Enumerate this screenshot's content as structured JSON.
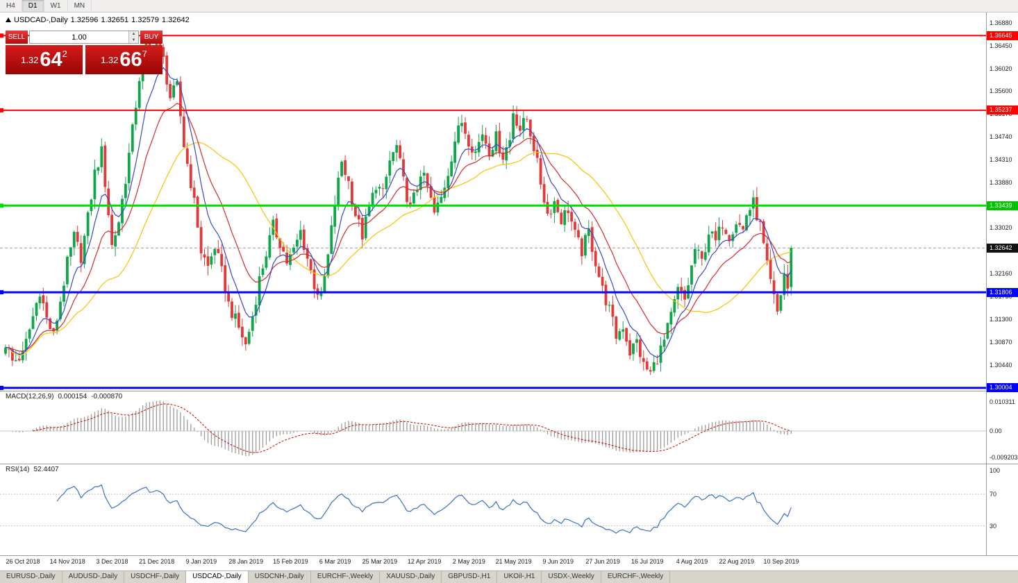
{
  "toolbar": {
    "periods": [
      {
        "label": "H4",
        "active": false
      },
      {
        "label": "D1",
        "active": true
      },
      {
        "label": "W1",
        "active": false
      },
      {
        "label": "MN",
        "active": false
      }
    ]
  },
  "main_chart": {
    "symbol": "USDCAD-,Daily",
    "open": "1.32596",
    "high": "1.32651",
    "low": "1.32579",
    "close": "1.32642"
  },
  "trade_panel": {
    "sell_label": "SELL",
    "buy_label": "BUY",
    "volume": "1.00",
    "sell_price_head": "1.32",
    "sell_price_big": "64",
    "sell_price_sup": "2",
    "buy_price_head": "1.32",
    "buy_price_big": "66",
    "buy_price_sup": "7"
  },
  "icons": {
    "spinner_up": "▲",
    "spinner_down": "▼"
  },
  "price_axis": {
    "ticks": [
      "1.36880",
      "1.36450",
      "1.36020",
      "1.35600",
      "1.35170",
      "1.34740",
      "1.34310",
      "1.33880",
      "1.33450",
      "1.33020",
      "1.32590",
      "1.32160",
      "1.31730",
      "1.31300",
      "1.30870",
      "1.30440"
    ],
    "badges": [
      {
        "text": "1.36645",
        "bg": "#ff0000"
      },
      {
        "text": "1.35237",
        "bg": "#ff0000"
      },
      {
        "text": "1.33439",
        "bg": "#00c400"
      },
      {
        "text": "1.32642",
        "bg": "#111111"
      },
      {
        "text": "1.31806",
        "bg": "#0000ff"
      },
      {
        "text": "1.30004",
        "bg": "#0000ff"
      }
    ]
  },
  "macd_panel": {
    "label": "MACD(12,26,9)",
    "value1": "0.000154",
    "value2": "-0.000870",
    "axis": [
      "0.010311",
      "0.00",
      "-0.009203"
    ]
  },
  "rsi_panel": {
    "label": "RSI(14)",
    "value": "52.4407",
    "axis": [
      "100",
      "70",
      "30"
    ]
  },
  "date_axis": [
    "26 Oct 2018",
    "14 Nov 2018",
    "3 Dec 2018",
    "21 Dec 2018",
    "9 Jan 2019",
    "28 Jan 2019",
    "15 Feb 2019",
    "6 Mar 2019",
    "25 Mar 2019",
    "12 Apr 2019",
    "2 May 2019",
    "21 May 2019",
    "9 Jun 2019",
    "27 Jun 2019",
    "16 Jul 2019",
    "4 Aug 2019",
    "22 Aug 2019",
    "10 Sep 2019"
  ],
  "tabs": [
    {
      "label": "EURUSD-,Daily",
      "active": false
    },
    {
      "label": "AUDUSD-,Daily",
      "active": false
    },
    {
      "label": "USDCHF-,Daily",
      "active": false
    },
    {
      "label": "USDCAD-,Daily",
      "active": true
    },
    {
      "label": "USDCNH-,Daily",
      "active": false
    },
    {
      "label": "EURCHF-,Weekly",
      "active": false
    },
    {
      "label": "XAUUSD-,Daily",
      "active": false
    },
    {
      "label": "GBPUSD-,H1",
      "active": false
    },
    {
      "label": "UKOil-,H1",
      "active": false
    },
    {
      "label": "USDX-,Weekly",
      "active": false
    },
    {
      "label": "EURCHF-,Weekly",
      "active": false
    }
  ],
  "chart_data": {
    "type": "candlestick",
    "symbol": "USDCAD",
    "timeframe": "Daily",
    "bars": 230,
    "last_close": 1.32642,
    "price_axis_top": 1.3708,
    "price_axis_bottom": 1.2995,
    "noise_amplitude": 0.0013,
    "up_color": "#0fa64a",
    "down_color": "#e23939",
    "close_waypoints": [
      [
        0,
        1.3085
      ],
      [
        2,
        1.305
      ],
      [
        5,
        1.3062
      ],
      [
        8,
        1.3135
      ],
      [
        10,
        1.3185
      ],
      [
        12,
        1.313
      ],
      [
        14,
        1.3098
      ],
      [
        16,
        1.3165
      ],
      [
        18,
        1.3235
      ],
      [
        20,
        1.3285
      ],
      [
        22,
        1.3248
      ],
      [
        24,
        1.332
      ],
      [
        26,
        1.3405
      ],
      [
        28,
        1.3445
      ],
      [
        30,
        1.333
      ],
      [
        31,
        1.3268
      ],
      [
        33,
        1.3315
      ],
      [
        35,
        1.3395
      ],
      [
        37,
        1.3485
      ],
      [
        39,
        1.3585
      ],
      [
        41,
        1.3645
      ],
      [
        42,
        1.3608
      ],
      [
        44,
        1.3655
      ],
      [
        46,
        1.3618
      ],
      [
        48,
        1.3548
      ],
      [
        50,
        1.3568
      ],
      [
        52,
        1.3458
      ],
      [
        54,
        1.3388
      ],
      [
        56,
        1.3308
      ],
      [
        57,
        1.3258
      ],
      [
        59,
        1.3228
      ],
      [
        61,
        1.3268
      ],
      [
        63,
        1.3218
      ],
      [
        65,
        1.3158
      ],
      [
        67,
        1.3128
      ],
      [
        69,
        1.3098
      ],
      [
        70,
        1.308
      ],
      [
        72,
        1.3135
      ],
      [
        74,
        1.3205
      ],
      [
        76,
        1.3255
      ],
      [
        78,
        1.3305
      ],
      [
        80,
        1.3275
      ],
      [
        82,
        1.3238
      ],
      [
        84,
        1.3258
      ],
      [
        86,
        1.3295
      ],
      [
        88,
        1.3245
      ],
      [
        90,
        1.3195
      ],
      [
        92,
        1.3168
      ],
      [
        94,
        1.3248
      ],
      [
        96,
        1.3348
      ],
      [
        98,
        1.3428
      ],
      [
        100,
        1.3388
      ],
      [
        102,
        1.3328
      ],
      [
        104,
        1.3288
      ],
      [
        106,
        1.3338
      ],
      [
        108,
        1.3385
      ],
      [
        110,
        1.3365
      ],
      [
        112,
        1.3428
      ],
      [
        114,
        1.3455
      ],
      [
        116,
        1.3388
      ],
      [
        118,
        1.3338
      ],
      [
        120,
        1.3378
      ],
      [
        121,
        1.3408
      ],
      [
        123,
        1.3378
      ],
      [
        125,
        1.3328
      ],
      [
        127,
        1.3358
      ],
      [
        129,
        1.3408
      ],
      [
        131,
        1.3468
      ],
      [
        133,
        1.3502
      ],
      [
        135,
        1.3468
      ],
      [
        137,
        1.3445
      ],
      [
        139,
        1.3482
      ],
      [
        141,
        1.3448
      ],
      [
        143,
        1.3472
      ],
      [
        145,
        1.3438
      ],
      [
        147,
        1.3468
      ],
      [
        148,
        1.3522
      ],
      [
        150,
        1.3488
      ],
      [
        152,
        1.3508
      ],
      [
        154,
        1.3455
      ],
      [
        156,
        1.3388
      ],
      [
        158,
        1.3328
      ],
      [
        160,
        1.3352
      ],
      [
        162,
        1.3318
      ],
      [
        164,
        1.3338
      ],
      [
        166,
        1.3288
      ],
      [
        168,
        1.3258
      ],
      [
        170,
        1.3295
      ],
      [
        172,
        1.3238
      ],
      [
        174,
        1.3185
      ],
      [
        176,
        1.3148
      ],
      [
        178,
        1.3098
      ],
      [
        180,
        1.3118
      ],
      [
        182,
        1.3068
      ],
      [
        184,
        1.3088
      ],
      [
        186,
        1.3042
      ],
      [
        188,
        1.3028
      ],
      [
        190,
        1.3058
      ],
      [
        192,
        1.3088
      ],
      [
        194,
        1.3135
      ],
      [
        196,
        1.3185
      ],
      [
        198,
        1.3165
      ],
      [
        200,
        1.3228
      ],
      [
        201,
        1.3262
      ],
      [
        203,
        1.3238
      ],
      [
        205,
        1.3295
      ],
      [
        207,
        1.3275
      ],
      [
        209,
        1.3312
      ],
      [
        211,
        1.3288
      ],
      [
        213,
        1.3315
      ],
      [
        215,
        1.3298
      ],
      [
        216,
        1.3328
      ],
      [
        218,
        1.3348
      ],
      [
        220,
        1.3305
      ],
      [
        222,
        1.3228
      ],
      [
        224,
        1.3168
      ],
      [
        225,
        1.3142
      ],
      [
        226,
        1.3178
      ],
      [
        227,
        1.3215
      ],
      [
        228,
        1.3188
      ],
      [
        229,
        1.32642
      ]
    ],
    "moving_averages": [
      {
        "type": "sma",
        "period": 34,
        "color": "#f5c400"
      },
      {
        "type": "ema",
        "period": 18,
        "color": "#d42a2a"
      },
      {
        "type": "ema",
        "period": 8,
        "color": "#3946c8"
      }
    ],
    "macd_params": {
      "fast": 12,
      "slow": 26,
      "signal": 9
    },
    "macd_colors": {
      "histogram": "#9b9b9b",
      "signal": "#cc0000"
    },
    "rsi_params": {
      "period": 14
    },
    "rsi_levels": [
      70,
      30
    ],
    "rsi_color": "#3b6fc4",
    "horizontal_levels": [
      {
        "price": 1.36645,
        "color": "#ff0000",
        "width": 2
      },
      {
        "price": 1.35237,
        "color": "#ff0000",
        "width": 2
      },
      {
        "price": 1.33439,
        "color": "#00e000",
        "width": 3
      },
      {
        "price": 1.31806,
        "color": "#0000ff",
        "width": 3
      },
      {
        "price": 1.30004,
        "color": "#0000ff",
        "width": 3
      }
    ]
  }
}
